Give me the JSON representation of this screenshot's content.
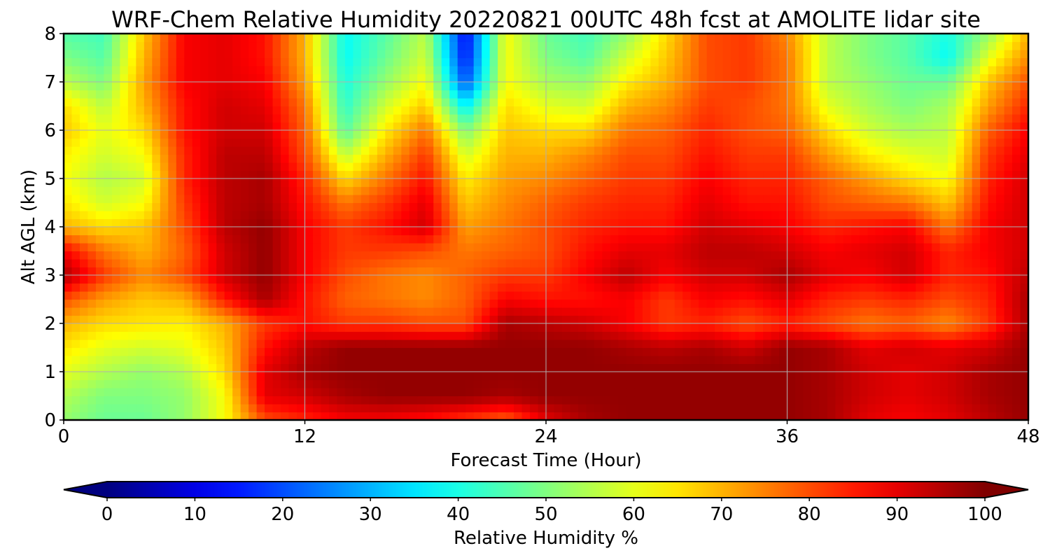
{
  "chart_data": {
    "type": "heatmap",
    "title": "WRF-Chem Relative Humidity 20220821 00UTC 48h fcst at AMOLITE lidar site",
    "xlabel": "Forecast Time (Hour)",
    "ylabel": "Alt AGL (km)",
    "xlim": [
      0,
      48
    ],
    "ylim": [
      0,
      8
    ],
    "xticks": [
      "0",
      "12",
      "24",
      "36",
      "48"
    ],
    "yticks": [
      "0",
      "1",
      "2",
      "3",
      "4",
      "5",
      "6",
      "7",
      "8"
    ],
    "grid": true,
    "colormap": "jet",
    "colorbar": {
      "label": "Relative Humidity %",
      "range": [
        0,
        100
      ],
      "extend": "both",
      "ticks": [
        "0",
        "10",
        "20",
        "30",
        "40",
        "50",
        "60",
        "70",
        "80",
        "90",
        "100"
      ]
    },
    "x": [
      0,
      2,
      4,
      6,
      8,
      10,
      12,
      14,
      16,
      18,
      20,
      22,
      24,
      26,
      28,
      30,
      32,
      34,
      36,
      38,
      40,
      42,
      44,
      46,
      48
    ],
    "y": [
      0,
      0.5,
      1,
      1.5,
      2,
      2.5,
      3,
      3.5,
      4,
      4.5,
      5,
      5.5,
      6,
      6.5,
      7,
      7.5,
      8
    ],
    "z": [
      [
        52,
        48,
        48,
        52,
        62,
        80,
        84,
        88,
        88,
        86,
        82,
        78,
        90,
        96,
        98,
        98,
        98,
        98,
        98,
        96,
        90,
        88,
        90,
        94,
        98
      ],
      [
        55,
        50,
        50,
        52,
        62,
        90,
        92,
        96,
        98,
        98,
        98,
        96,
        98,
        98,
        98,
        98,
        98,
        98,
        98,
        96,
        92,
        90,
        92,
        96,
        98
      ],
      [
        60,
        55,
        52,
        55,
        66,
        90,
        96,
        98,
        98,
        98,
        98,
        98,
        98,
        98,
        98,
        98,
        98,
        98,
        98,
        96,
        92,
        90,
        92,
        96,
        98
      ],
      [
        65,
        60,
        58,
        60,
        68,
        86,
        94,
        98,
        98,
        98,
        98,
        98,
        98,
        98,
        96,
        94,
        96,
        92,
        98,
        96,
        90,
        92,
        90,
        92,
        98
      ],
      [
        70,
        66,
        65,
        64,
        70,
        82,
        86,
        82,
        82,
        80,
        80,
        96,
        94,
        92,
        88,
        82,
        84,
        80,
        84,
        80,
        76,
        78,
        74,
        82,
        96
      ],
      [
        80,
        72,
        68,
        70,
        85,
        96,
        86,
        78,
        76,
        74,
        78,
        88,
        86,
        86,
        88,
        82,
        88,
        86,
        90,
        84,
        82,
        84,
        80,
        84,
        96
      ],
      [
        96,
        82,
        74,
        80,
        92,
        98,
        88,
        80,
        76,
        74,
        78,
        82,
        82,
        88,
        94,
        88,
        92,
        92,
        96,
        90,
        88,
        92,
        84,
        86,
        94
      ],
      [
        88,
        76,
        70,
        78,
        92,
        98,
        88,
        82,
        82,
        80,
        76,
        78,
        80,
        86,
        90,
        90,
        94,
        94,
        92,
        88,
        90,
        92,
        84,
        88,
        92
      ],
      [
        70,
        66,
        68,
        80,
        94,
        98,
        88,
        82,
        86,
        92,
        72,
        76,
        80,
        84,
        86,
        86,
        92,
        90,
        88,
        84,
        86,
        88,
        76,
        88,
        92
      ],
      [
        65,
        58,
        62,
        82,
        94,
        96,
        86,
        76,
        82,
        90,
        68,
        74,
        78,
        82,
        84,
        84,
        90,
        86,
        86,
        80,
        78,
        76,
        68,
        86,
        92
      ],
      [
        62,
        55,
        58,
        84,
        94,
        96,
        84,
        66,
        76,
        86,
        64,
        72,
        74,
        78,
        82,
        82,
        88,
        84,
        84,
        78,
        72,
        66,
        62,
        84,
        92
      ],
      [
        64,
        58,
        62,
        84,
        94,
        94,
        80,
        56,
        70,
        82,
        58,
        70,
        70,
        74,
        80,
        80,
        86,
        82,
        82,
        72,
        64,
        60,
        58,
        82,
        90
      ],
      [
        68,
        60,
        66,
        86,
        92,
        92,
        78,
        46,
        64,
        76,
        50,
        68,
        66,
        66,
        76,
        78,
        84,
        80,
        78,
        66,
        58,
        54,
        56,
        78,
        88
      ],
      [
        66,
        56,
        70,
        86,
        92,
        90,
        76,
        42,
        58,
        68,
        36,
        66,
        60,
        58,
        70,
        74,
        82,
        80,
        76,
        60,
        54,
        50,
        54,
        72,
        84
      ],
      [
        56,
        50,
        72,
        88,
        90,
        88,
        72,
        40,
        52,
        62,
        20,
        62,
        54,
        52,
        64,
        70,
        80,
        82,
        76,
        56,
        52,
        48,
        48,
        68,
        80
      ],
      [
        50,
        46,
        70,
        88,
        90,
        86,
        70,
        38,
        48,
        58,
        14,
        62,
        50,
        46,
        58,
        68,
        80,
        82,
        76,
        56,
        50,
        46,
        38,
        60,
        74
      ],
      [
        46,
        44,
        68,
        88,
        90,
        86,
        70,
        38,
        46,
        56,
        12,
        62,
        48,
        44,
        52,
        66,
        80,
        82,
        74,
        56,
        50,
        46,
        40,
        52,
        70
      ]
    ]
  }
}
